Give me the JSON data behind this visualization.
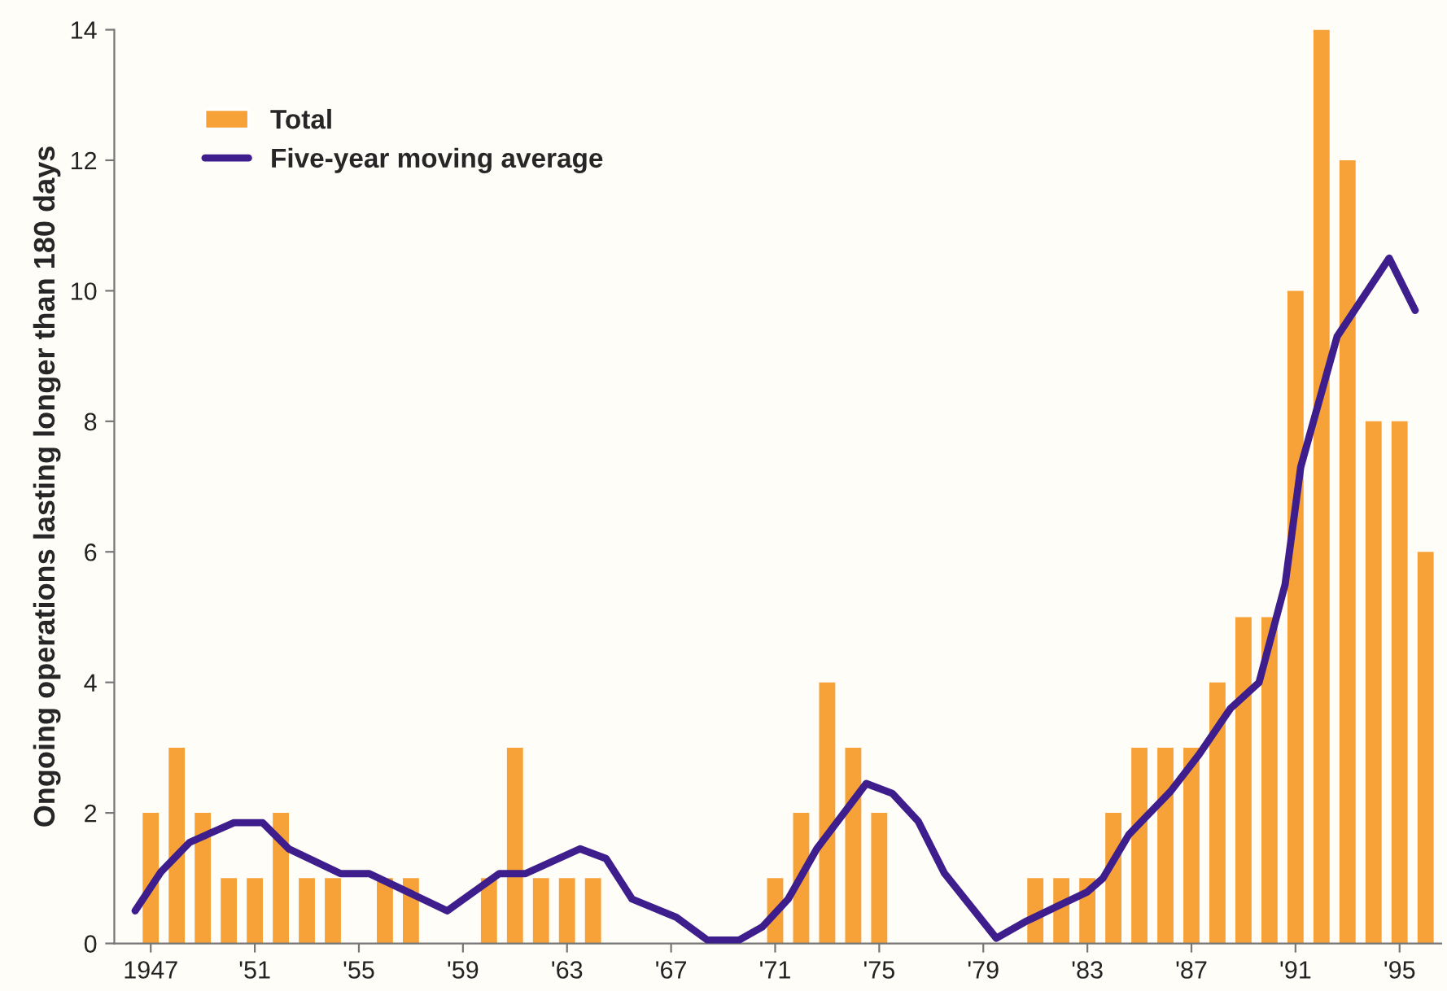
{
  "chart_data": {
    "type": "bar",
    "ylabel": "Ongoing operations lasting longer than 180 days",
    "xlim": [
      1945.6,
      1996.6
    ],
    "xticks": [
      {
        "value": 1947,
        "label": "1947"
      },
      {
        "value": 1951,
        "label": "'51"
      },
      {
        "value": 1955,
        "label": "'55"
      },
      {
        "value": 1959,
        "label": "'59"
      },
      {
        "value": 1963,
        "label": "'63"
      },
      {
        "value": 1967,
        "label": "'67"
      },
      {
        "value": 1971,
        "label": "'71"
      },
      {
        "value": 1975,
        "label": "'75"
      },
      {
        "value": 1979,
        "label": "'79"
      },
      {
        "value": 1983,
        "label": "'83"
      },
      {
        "value": 1987,
        "label": "'87"
      },
      {
        "value": 1991,
        "label": "'91"
      },
      {
        "value": 1995,
        "label": "'95"
      }
    ],
    "ylim": [
      0,
      14
    ],
    "yticks": [
      0,
      2,
      4,
      6,
      8,
      10,
      12,
      14
    ],
    "grid": false,
    "legend": "top left",
    "series": [
      {
        "name": "Total",
        "color": "#f7a238",
        "x": [
          1947,
          1948,
          1949,
          1950,
          1951,
          1952,
          1953,
          1954,
          1955,
          1956,
          1957,
          1958,
          1959,
          1960,
          1961,
          1962,
          1963,
          1964,
          1965,
          1966,
          1967,
          1968,
          1969,
          1970,
          1971,
          1972,
          1973,
          1974,
          1975,
          1976,
          1977,
          1978,
          1979,
          1980,
          1981,
          1982,
          1983,
          1984,
          1985,
          1986,
          1987,
          1988,
          1989,
          1990,
          1991,
          1992,
          1993,
          1994,
          1995,
          1996
        ],
        "values": [
          2,
          3,
          2,
          1,
          1,
          2,
          1,
          1,
          0,
          1,
          1,
          0,
          0,
          1,
          3,
          1,
          1,
          1,
          0,
          0,
          0,
          0,
          0,
          0,
          1,
          2,
          4,
          3,
          2,
          0,
          0,
          0,
          0,
          0,
          1,
          1,
          1,
          2,
          3,
          3,
          3,
          4,
          5,
          5,
          10,
          14,
          12,
          8,
          8,
          6
        ]
      },
      {
        "name": "Five-year moving average",
        "type": "line",
        "color": "#3d1e8c",
        "x": [
          1946.4,
          1947.4,
          1948.5,
          1950.2,
          1951.3,
          1952.3,
          1954.3,
          1955.4,
          1958.4,
          1960.4,
          1961.4,
          1963.5,
          1964.5,
          1965.5,
          1967.2,
          1968.4,
          1969.6,
          1970.5,
          1971.5,
          1972.6,
          1974.5,
          1975.5,
          1976.5,
          1977.5,
          1979.5,
          1980.6,
          1981.9,
          1983.0,
          1983.6,
          1984.6,
          1986.2,
          1987.3,
          1988.5,
          1989.6,
          1990.6,
          1991.2,
          1992.6,
          1994.6,
          1995.6
        ],
        "values": [
          0.5,
          1.1,
          1.55,
          1.85,
          1.85,
          1.45,
          1.07,
          1.07,
          0.5,
          1.07,
          1.07,
          1.45,
          1.3,
          0.68,
          0.4,
          0.05,
          0.05,
          0.25,
          0.68,
          1.45,
          2.45,
          2.3,
          1.87,
          1.08,
          0.08,
          0.33,
          0.58,
          0.79,
          1.0,
          1.67,
          2.33,
          2.9,
          3.6,
          4.0,
          5.5,
          7.3,
          9.3,
          10.5,
          9.7
        ]
      }
    ]
  }
}
